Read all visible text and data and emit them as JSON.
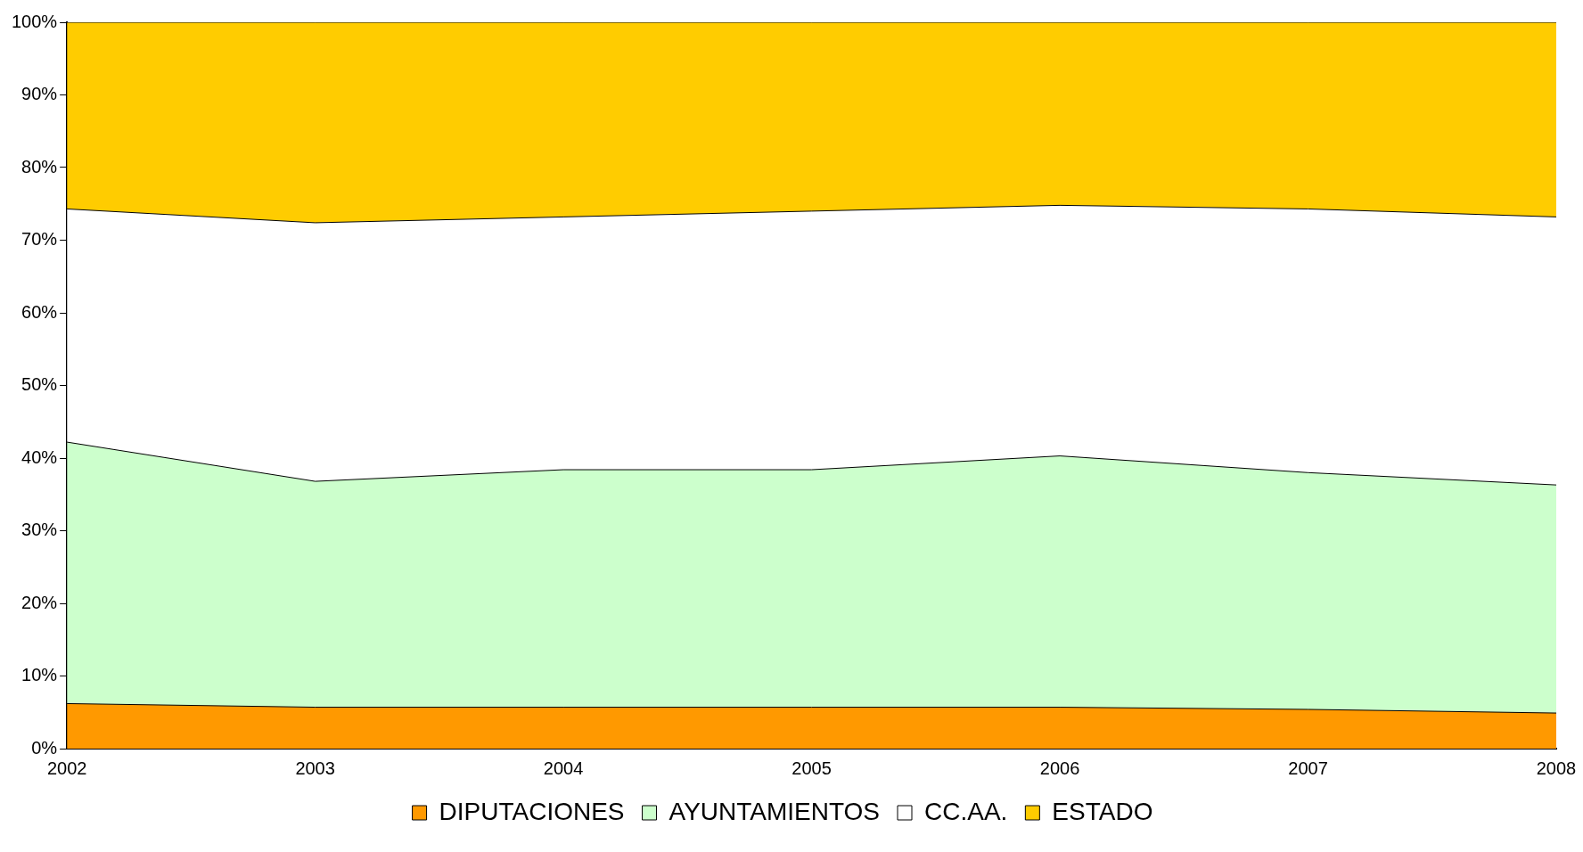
{
  "chart_data": {
    "type": "area",
    "stacked": true,
    "categories": [
      "2002",
      "2003",
      "2004",
      "2005",
      "2006",
      "2007",
      "2008"
    ],
    "series": [
      {
        "name": "DIPUTACIONES",
        "color": "#ff9900",
        "values": [
          6.2,
          5.7,
          5.7,
          5.7,
          5.7,
          5.4,
          4.9
        ]
      },
      {
        "name": "AYUNTAMIENTOS",
        "color": "#ccffcc",
        "values": [
          36.0,
          31.1,
          32.7,
          32.7,
          34.6,
          32.6,
          31.4
        ]
      },
      {
        "name": "CC.AA.",
        "color": "#ffffff",
        "values": [
          32.1,
          35.6,
          34.8,
          35.6,
          34.5,
          36.3,
          36.9
        ]
      },
      {
        "name": "ESTADO",
        "color": "#ffcc00",
        "values": [
          25.7,
          27.6,
          26.8,
          26.0,
          25.2,
          25.7,
          26.8
        ]
      }
    ],
    "ylim": [
      0,
      100
    ],
    "yticks": [
      {
        "value": 0,
        "label": "0%"
      },
      {
        "value": 10,
        "label": "10%"
      },
      {
        "value": 20,
        "label": "20%"
      },
      {
        "value": 30,
        "label": "30%"
      },
      {
        "value": 40,
        "label": "40%"
      },
      {
        "value": 50,
        "label": "50%"
      },
      {
        "value": 60,
        "label": "60%"
      },
      {
        "value": 70,
        "label": "70%"
      },
      {
        "value": 80,
        "label": "80%"
      },
      {
        "value": 90,
        "label": "90%"
      },
      {
        "value": 100,
        "label": "100%"
      }
    ],
    "grid": false,
    "legend": "bottom"
  }
}
